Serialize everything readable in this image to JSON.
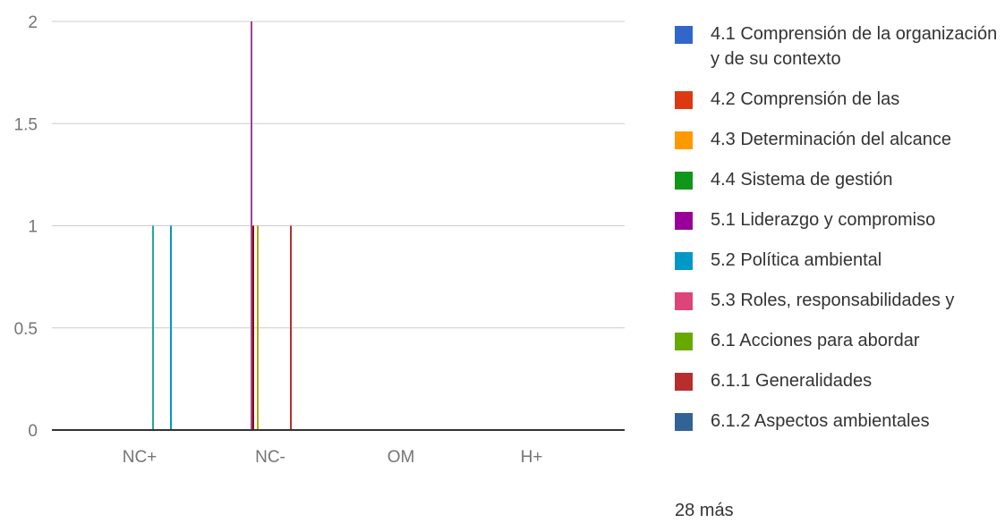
{
  "chart_data": {
    "type": "bar",
    "categories": [
      "NC+",
      "NC-",
      "OM",
      "H+"
    ],
    "yticks": [
      "0",
      "0.5",
      "1",
      "1.5",
      "2"
    ],
    "ylim": [
      0,
      2
    ],
    "grid": true,
    "legend_placement": "right",
    "series": [
      {
        "name": "4.1 Comprensión de la organización y de su contexto",
        "color": "#3366cc",
        "values": [
          0,
          0,
          0,
          0
        ]
      },
      {
        "name": "4.2 Comprensión de las",
        "color": "#dc3912",
        "values": [
          0,
          0,
          0,
          0
        ]
      },
      {
        "name": "4.3 Determinación del alcance",
        "color": "#ff9900",
        "values": [
          0,
          0,
          0,
          0
        ]
      },
      {
        "name": "4.4 Sistema de gestión",
        "color": "#109618",
        "values": [
          0,
          0,
          0,
          0
        ]
      },
      {
        "name": "5.1 Liderazgo y compromiso",
        "color": "#990099",
        "values": [
          0,
          0,
          0,
          0
        ]
      },
      {
        "name": "5.2 Política ambiental",
        "color": "#0099c6",
        "values": [
          1,
          0,
          0,
          0
        ]
      },
      {
        "name": "5.3 Roles, responsabilidades y",
        "color": "#dd4477",
        "values": [
          0,
          0,
          0,
          0
        ]
      },
      {
        "name": "6.1 Acciones para abordar",
        "color": "#66aa00",
        "values": [
          0,
          0,
          0,
          0
        ]
      },
      {
        "name": "6.1.1 Generalidades",
        "color": "#b82e2e",
        "values": [
          0,
          1,
          0,
          0
        ]
      },
      {
        "name": "6.1.2 Aspectos ambientales",
        "color": "#316395",
        "values": [
          0,
          0,
          0,
          0
        ]
      }
    ],
    "hidden_series": [
      {
        "color": "#22aa99",
        "values": [
          1,
          0,
          0,
          0
        ]
      },
      {
        "color": "#994499",
        "values": [
          0,
          2,
          0,
          0
        ]
      },
      {
        "color": "#aaaa11",
        "values": [
          0,
          1,
          0,
          0
        ]
      },
      {
        "color": "#8b0707",
        "values": [
          0,
          1,
          0,
          0
        ]
      }
    ],
    "legend_more": "28 más"
  }
}
